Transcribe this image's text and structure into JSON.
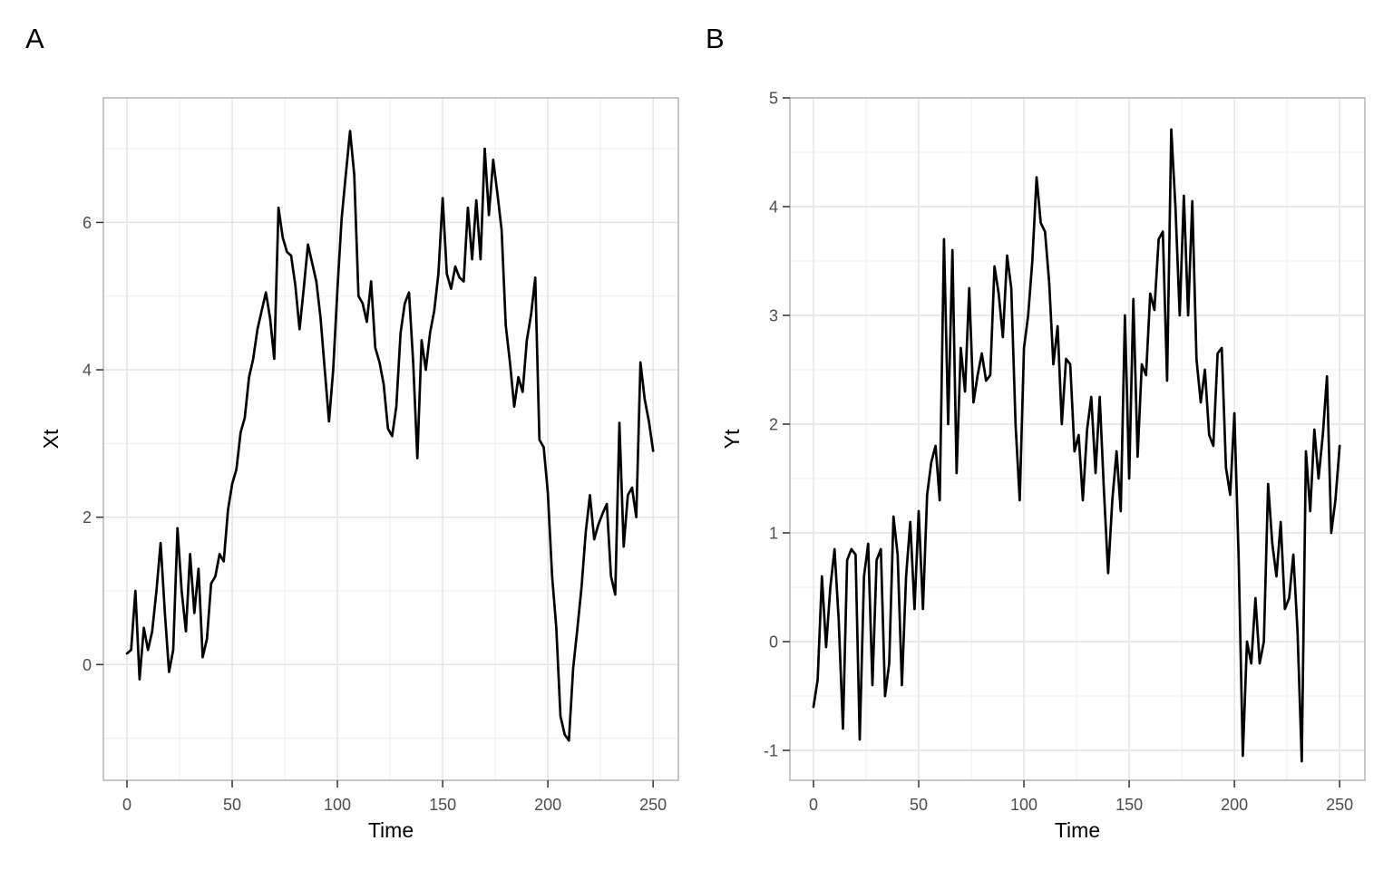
{
  "figure": {
    "background": "#ffffff",
    "style": {
      "panel_border": "#a9a9a9",
      "grid_major": "#e3e3e3",
      "grid_minor": "#f0f0f0",
      "tick_mark_color": "#333333",
      "tick_label_color": "#4d4d4d",
      "axis_title_color": "#000000",
      "line_color": "#000000"
    }
  },
  "chart_data": [
    {
      "type": "line",
      "tag": "A",
      "title": "",
      "xlabel": "Time",
      "ylabel": "Xt",
      "legend": "none",
      "grid": true,
      "xlim": [
        -11.2,
        262
      ],
      "ylim": [
        -1.57,
        7.69
      ],
      "x_ticks": [
        0,
        50,
        100,
        150,
        200,
        250
      ],
      "x_minor": [
        25,
        75,
        125,
        175,
        225
      ],
      "y_ticks": [
        0,
        2,
        4,
        6
      ],
      "y_minor": [
        -1,
        1,
        3,
        5,
        7
      ],
      "x": {
        "start": 0,
        "step": 2,
        "n": 126
      },
      "values": [
        0.15,
        0.2,
        1.0,
        -0.2,
        0.5,
        0.2,
        0.45,
        1.0,
        1.65,
        0.7,
        -0.1,
        0.2,
        1.85,
        1.0,
        0.45,
        1.5,
        0.7,
        1.3,
        0.1,
        0.35,
        1.1,
        1.2,
        1.5,
        1.4,
        2.1,
        2.45,
        2.65,
        3.15,
        3.35,
        3.9,
        4.15,
        4.55,
        4.8,
        5.05,
        4.7,
        4.15,
        6.2,
        5.8,
        5.6,
        5.55,
        5.15,
        4.55,
        5.1,
        5.7,
        5.45,
        5.2,
        4.7,
        4.0,
        3.3,
        4.0,
        5.1,
        6.05,
        6.65,
        7.24,
        6.65,
        5.0,
        4.9,
        4.65,
        5.2,
        4.3,
        4.1,
        3.8,
        3.2,
        3.1,
        3.5,
        4.5,
        4.9,
        5.05,
        4.1,
        2.8,
        4.4,
        4.0,
        4.5,
        4.8,
        5.3,
        6.33,
        5.3,
        5.1,
        5.4,
        5.25,
        5.2,
        6.2,
        5.5,
        6.3,
        5.5,
        7.0,
        6.1,
        6.85,
        6.4,
        5.9,
        4.6,
        4.1,
        3.5,
        3.9,
        3.7,
        4.4,
        4.75,
        5.25,
        3.05,
        2.95,
        2.33,
        1.2,
        0.5,
        -0.7,
        -0.95,
        -1.03,
        -0.05,
        0.48,
        1.06,
        1.8,
        2.3,
        1.7,
        1.9,
        2.05,
        2.18,
        1.2,
        0.95,
        3.28,
        1.6,
        2.3,
        2.4,
        2.0,
        4.1,
        3.6,
        3.3,
        2.9
      ]
    },
    {
      "type": "line",
      "tag": "B",
      "title": "",
      "xlabel": "Time",
      "ylabel": "Yt",
      "legend": "none",
      "grid": true,
      "xlim": [
        -11.2,
        262
      ],
      "ylim": [
        -1.275,
        5.0
      ],
      "x_ticks": [
        0,
        50,
        100,
        150,
        200,
        250
      ],
      "x_minor": [
        25,
        75,
        125,
        175,
        225
      ],
      "y_ticks": [
        -1,
        0,
        1,
        2,
        3,
        4,
        5
      ],
      "y_minor": [
        -0.5,
        0.5,
        1.5,
        2.5,
        3.5,
        4.5
      ],
      "x": {
        "start": 0,
        "step": 2,
        "n": 126
      },
      "values": [
        -0.6,
        -0.35,
        0.6,
        -0.05,
        0.5,
        0.85,
        0.2,
        -0.8,
        0.75,
        0.85,
        0.8,
        -0.9,
        0.6,
        0.9,
        -0.4,
        0.75,
        0.85,
        -0.5,
        -0.2,
        1.15,
        0.8,
        -0.4,
        0.6,
        1.1,
        0.3,
        1.2,
        0.3,
        1.35,
        1.65,
        1.8,
        1.3,
        3.7,
        2.0,
        3.6,
        1.55,
        2.7,
        2.3,
        3.25,
        2.2,
        2.45,
        2.65,
        2.4,
        2.45,
        3.45,
        3.2,
        2.8,
        3.55,
        3.25,
        2.0,
        1.3,
        2.7,
        3.0,
        3.5,
        4.27,
        3.85,
        3.77,
        3.3,
        2.55,
        2.9,
        2.0,
        2.6,
        2.55,
        1.75,
        1.9,
        1.3,
        1.95,
        2.25,
        1.55,
        2.25,
        1.4,
        0.63,
        1.3,
        1.75,
        1.2,
        3.0,
        1.5,
        3.15,
        1.7,
        2.55,
        2.45,
        3.2,
        3.05,
        3.7,
        3.77,
        2.4,
        4.71,
        4.0,
        3.0,
        4.1,
        3.0,
        4.05,
        2.6,
        2.2,
        2.5,
        1.9,
        1.8,
        2.65,
        2.7,
        1.6,
        1.35,
        2.1,
        0.77,
        -1.05,
        0.0,
        -0.2,
        0.4,
        -0.2,
        0.0,
        1.45,
        0.9,
        0.6,
        1.1,
        0.3,
        0.4,
        0.8,
        0.1,
        -1.1,
        1.75,
        1.2,
        1.95,
        1.5,
        1.9,
        2.44,
        1.0,
        1.3,
        1.8
      ]
    }
  ]
}
